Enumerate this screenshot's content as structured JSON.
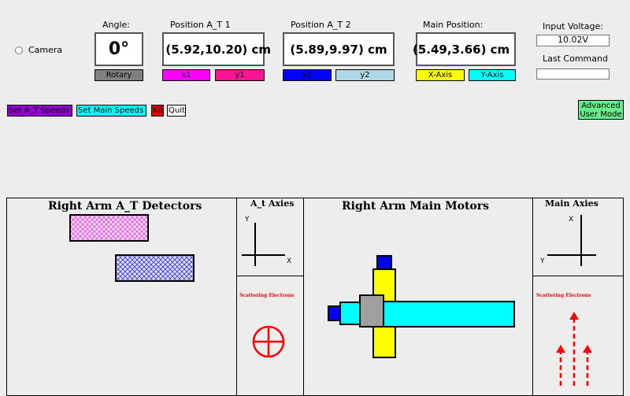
{
  "camera": {
    "label": "Camera"
  },
  "angle": {
    "label": "Angle:",
    "value": "0°",
    "button": "Rotary"
  },
  "pos_at1": {
    "label": "Position A_T 1",
    "value": "(5.92,10.20) cm",
    "x_button": "x1",
    "y_button": "y1"
  },
  "pos_at2": {
    "label": "Position A_T 2",
    "value": "(5.89,9.97) cm",
    "x_button": "x2",
    "y_button": "y2"
  },
  "main_pos": {
    "label": "Main Position:",
    "value": "(5.49,3.66) cm",
    "x_button": "X-Axis",
    "y_button": "Y-Axis"
  },
  "voltage": {
    "label": "Input Voltage:",
    "value": "10.02V"
  },
  "last_command": {
    "label": "Last Command",
    "value": ""
  },
  "toolbar": {
    "set_at_speeds": "Set A_T Speeds",
    "set_main_speeds": "Set Main Speeds",
    "kill": "Kill",
    "quit": "Quit"
  },
  "advanced": {
    "line1": "Advanced",
    "line2": "User Mode"
  },
  "panels": {
    "detectors_title": "Right Arm A_T Detectors",
    "at_axies_title": "A_t Axies",
    "at_axies_y": "Y",
    "at_axies_x": "X",
    "scattering_left": "Scattering Electrons",
    "motors_title": "Right Arm Main Motors",
    "main_axies_title": "Main Axies",
    "main_axies_x": "X",
    "main_axies_y": "Y",
    "scattering_right": "Scattering Electrons"
  },
  "colors": {
    "rotary": "#808080",
    "x1": "#ff00ff",
    "y1": "#ff1493",
    "x2": "#0000ff",
    "y2": "#add8e6",
    "xaxis": "#ffff00",
    "yaxis": "#00ffff",
    "at_speeds": "#9400d3",
    "main_speeds": "#00ffff",
    "kill": "#e00000",
    "advanced": "#66ee88",
    "arrow_red": "#ff0000"
  }
}
